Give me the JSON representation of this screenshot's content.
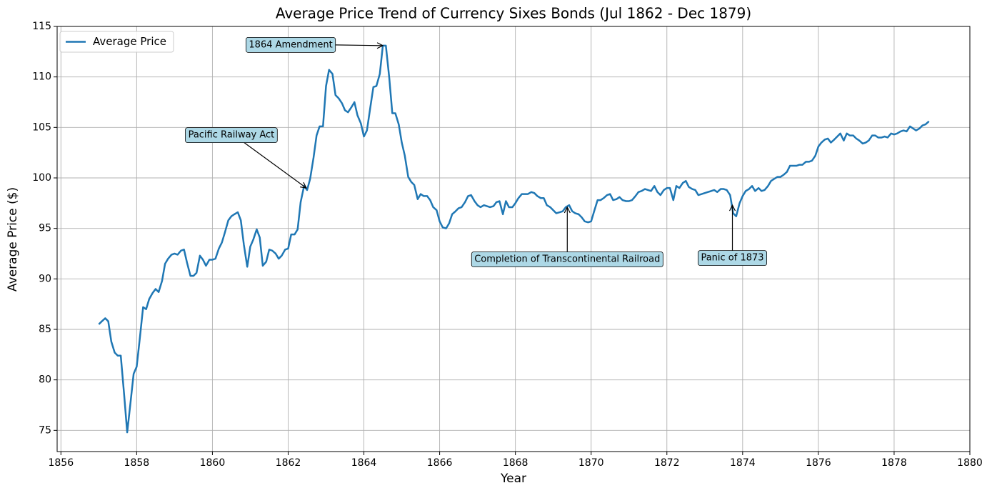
{
  "chart_data": {
    "type": "line",
    "title": "Average Price Trend of Currency Sixes Bonds (Jul 1862 - Dec 1879)",
    "x_label": "Year",
    "y_label": "Average Price ($)",
    "x": [
      1857.0,
      1857.08,
      1857.17,
      1857.25,
      1857.33,
      1857.42,
      1857.5,
      1857.58,
      1857.67,
      1857.75,
      1857.83,
      1857.92,
      1858.0,
      1858.08,
      1858.17,
      1858.25,
      1858.33,
      1858.42,
      1858.5,
      1858.58,
      1858.67,
      1858.75,
      1858.83,
      1858.92,
      1859.0,
      1859.08,
      1859.17,
      1859.25,
      1859.33,
      1859.42,
      1859.5,
      1859.58,
      1859.67,
      1859.75,
      1859.83,
      1859.92,
      1860.0,
      1860.08,
      1860.17,
      1860.25,
      1860.33,
      1860.42,
      1860.5,
      1860.58,
      1860.67,
      1860.75,
      1860.83,
      1860.92,
      1861.0,
      1861.08,
      1861.17,
      1861.25,
      1861.33,
      1861.42,
      1861.5,
      1861.58,
      1861.67,
      1861.75,
      1861.83,
      1861.92,
      1862.0,
      1862.08,
      1862.17,
      1862.25,
      1862.33,
      1862.42,
      1862.5,
      1862.58,
      1862.67,
      1862.75,
      1862.83,
      1862.92,
      1863.0,
      1863.08,
      1863.17,
      1863.25,
      1863.33,
      1863.42,
      1863.5,
      1863.58,
      1863.67,
      1863.75,
      1863.83,
      1863.92,
      1864.0,
      1864.08,
      1864.17,
      1864.25,
      1864.33,
      1864.42,
      1864.5,
      1864.58,
      1864.67,
      1864.75,
      1864.83,
      1864.92,
      1865.0,
      1865.08,
      1865.17,
      1865.25,
      1865.33,
      1865.42,
      1865.5,
      1865.58,
      1865.67,
      1865.75,
      1865.83,
      1865.92,
      1866.0,
      1866.08,
      1866.17,
      1866.25,
      1866.33,
      1866.42,
      1866.5,
      1866.58,
      1866.67,
      1866.75,
      1866.83,
      1866.92,
      1867.0,
      1867.08,
      1867.17,
      1867.25,
      1867.33,
      1867.42,
      1867.5,
      1867.58,
      1867.67,
      1867.75,
      1867.83,
      1867.92,
      1868.0,
      1868.08,
      1868.17,
      1868.25,
      1868.33,
      1868.42,
      1868.5,
      1868.58,
      1868.67,
      1868.75,
      1868.83,
      1868.92,
      1869.0,
      1869.08,
      1869.17,
      1869.25,
      1869.33,
      1869.42,
      1869.5,
      1869.58,
      1869.67,
      1869.75,
      1869.83,
      1869.92,
      1870.0,
      1870.08,
      1870.17,
      1870.25,
      1870.33,
      1870.42,
      1870.5,
      1870.58,
      1870.67,
      1870.75,
      1870.83,
      1870.92,
      1871.0,
      1871.08,
      1871.17,
      1871.25,
      1871.33,
      1871.42,
      1871.5,
      1871.58,
      1871.67,
      1871.75,
      1871.83,
      1871.92,
      1872.0,
      1872.08,
      1872.17,
      1872.25,
      1872.33,
      1872.42,
      1872.5,
      1872.58,
      1872.67,
      1872.75,
      1872.83,
      1872.92,
      1873.0,
      1873.08,
      1873.17,
      1873.25,
      1873.33,
      1873.42,
      1873.5,
      1873.58,
      1873.67,
      1873.75,
      1873.83,
      1873.92,
      1874.0,
      1874.08,
      1874.17,
      1874.25,
      1874.33,
      1874.42,
      1874.5,
      1874.58,
      1874.67,
      1874.75,
      1874.83,
      1874.92,
      1875.0,
      1875.08,
      1875.17,
      1875.25,
      1875.33,
      1875.42,
      1875.5,
      1875.58,
      1875.67,
      1875.75,
      1875.83,
      1875.92,
      1876.0,
      1876.08,
      1876.17,
      1876.25,
      1876.33,
      1876.42,
      1876.5,
      1876.58,
      1876.67,
      1876.75,
      1876.83,
      1876.92,
      1877.0,
      1877.08,
      1877.17,
      1877.25,
      1877.33,
      1877.42,
      1877.5,
      1877.58,
      1877.67,
      1877.75,
      1877.83,
      1877.92,
      1878.0,
      1878.08,
      1878.17,
      1878.25,
      1878.33,
      1878.42,
      1878.5,
      1878.58,
      1878.67,
      1878.75,
      1878.83,
      1878.92
    ],
    "series": [
      {
        "name": "Average Price",
        "color": "#1f77b4",
        "values": [
          85.5,
          85.8,
          86.1,
          85.8,
          83.8,
          82.7,
          82.4,
          82.4,
          78.5,
          74.8,
          77.5,
          80.6,
          81.3,
          84.0,
          87.2,
          87.0,
          88.0,
          88.6,
          89.0,
          88.7,
          89.8,
          91.5,
          92.0,
          92.4,
          92.5,
          92.4,
          92.8,
          92.9,
          91.6,
          90.3,
          90.3,
          90.6,
          92.3,
          91.9,
          91.3,
          91.9,
          91.9,
          92.0,
          93.0,
          93.6,
          94.6,
          95.8,
          96.2,
          96.4,
          96.6,
          95.8,
          93.4,
          91.2,
          93.2,
          93.9,
          94.9,
          94.1,
          91.3,
          91.7,
          92.9,
          92.8,
          92.5,
          92.0,
          92.3,
          92.9,
          93.0,
          94.4,
          94.4,
          94.9,
          97.6,
          99.2,
          98.8,
          99.9,
          102.0,
          104.2,
          105.1,
          105.1,
          109.1,
          110.7,
          110.3,
          108.2,
          107.9,
          107.4,
          106.7,
          106.5,
          107.0,
          107.5,
          106.2,
          105.4,
          104.1,
          104.7,
          107.0,
          109.0,
          109.1,
          110.3,
          113.1,
          113.1,
          109.9,
          106.4,
          106.4,
          105.3,
          103.5,
          102.2,
          100.1,
          99.6,
          99.3,
          97.9,
          98.4,
          98.2,
          98.2,
          97.8,
          97.1,
          96.8,
          95.7,
          95.1,
          95.0,
          95.5,
          96.4,
          96.7,
          97.0,
          97.1,
          97.6,
          98.2,
          98.3,
          97.7,
          97.3,
          97.1,
          97.3,
          97.2,
          97.1,
          97.2,
          97.6,
          97.7,
          96.4,
          97.7,
          97.1,
          97.1,
          97.5,
          98.0,
          98.4,
          98.4,
          98.4,
          98.6,
          98.5,
          98.2,
          98.0,
          98.0,
          97.3,
          97.1,
          96.8,
          96.5,
          96.6,
          96.7,
          97.1,
          97.3,
          96.7,
          96.5,
          96.4,
          96.1,
          95.7,
          95.6,
          95.7,
          96.7,
          97.8,
          97.8,
          98.0,
          98.3,
          98.4,
          97.8,
          97.9,
          98.1,
          97.8,
          97.7,
          97.7,
          97.8,
          98.2,
          98.6,
          98.7,
          98.9,
          98.8,
          98.7,
          99.2,
          98.6,
          98.3,
          98.8,
          99.0,
          99.0,
          97.8,
          99.2,
          99.0,
          99.5,
          99.7,
          99.1,
          98.9,
          98.8,
          98.3,
          98.4,
          98.5,
          98.6,
          98.7,
          98.8,
          98.6,
          98.9,
          98.9,
          98.8,
          98.3,
          96.5,
          96.2,
          97.5,
          98.2,
          98.7,
          98.9,
          99.2,
          98.7,
          99.0,
          98.7,
          98.8,
          99.2,
          99.7,
          99.9,
          100.1,
          100.1,
          100.3,
          100.6,
          101.2,
          101.2,
          101.2,
          101.3,
          101.3,
          101.6,
          101.6,
          101.7,
          102.2,
          103.1,
          103.5,
          103.8,
          103.9,
          103.5,
          103.8,
          104.1,
          104.4,
          103.7,
          104.4,
          104.2,
          104.2,
          103.9,
          103.7,
          103.4,
          103.5,
          103.7,
          104.2,
          104.2,
          104.0,
          104.0,
          104.1,
          104.0,
          104.4,
          104.3,
          104.4,
          104.6,
          104.7,
          104.6,
          105.1,
          104.9,
          104.7,
          104.9,
          105.2,
          105.3,
          105.6
        ]
      }
    ],
    "annotations": [
      {
        "text": "Pacific Railway Act",
        "x": 1862.48,
        "y": 99.0
      },
      {
        "text": "1864 Amendment",
        "x": 1864.5,
        "y": 113.1
      },
      {
        "text": "Completion of Transcontinental Railroad",
        "x": 1869.37,
        "y": 97.1
      },
      {
        "text": "Panic of 1873",
        "x": 1873.73,
        "y": 97.3
      }
    ],
    "xlim": [
      1855.9,
      1880.0
    ],
    "xticks": [
      1856,
      1858,
      1860,
      1862,
      1864,
      1866,
      1868,
      1870,
      1872,
      1874,
      1876,
      1878,
      1880
    ],
    "ylim": [
      72.9,
      115.0
    ],
    "yticks": [
      75,
      80,
      85,
      90,
      95,
      100,
      105,
      110,
      115
    ],
    "grid": true,
    "legend": "upper left"
  }
}
